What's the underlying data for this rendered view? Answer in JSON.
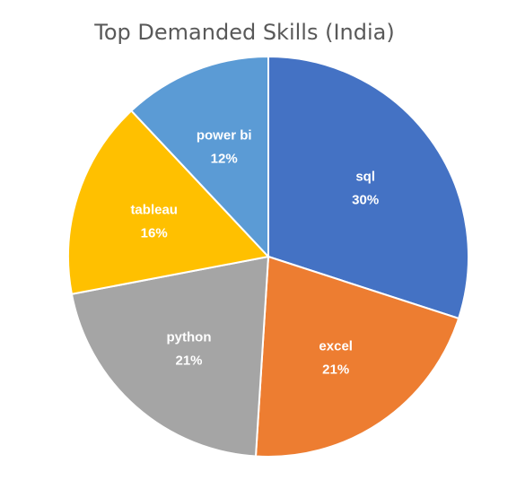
{
  "chart_data": {
    "type": "pie",
    "title": "Top Demanded Skills (India)",
    "categories": [
      "sql",
      "excel",
      "python",
      "tableau",
      "power bi"
    ],
    "values": [
      30,
      21,
      21,
      16,
      12
    ],
    "value_labels": [
      "30%",
      "21%",
      "21%",
      "16%",
      "12%"
    ],
    "colors": [
      "#4472C4",
      "#ED7D31",
      "#A5A5A5",
      "#FFC000",
      "#5B9BD5"
    ],
    "start_angle": "12 o'clock",
    "direction": "clockwise",
    "legend": "none",
    "data_labels": "inside"
  }
}
